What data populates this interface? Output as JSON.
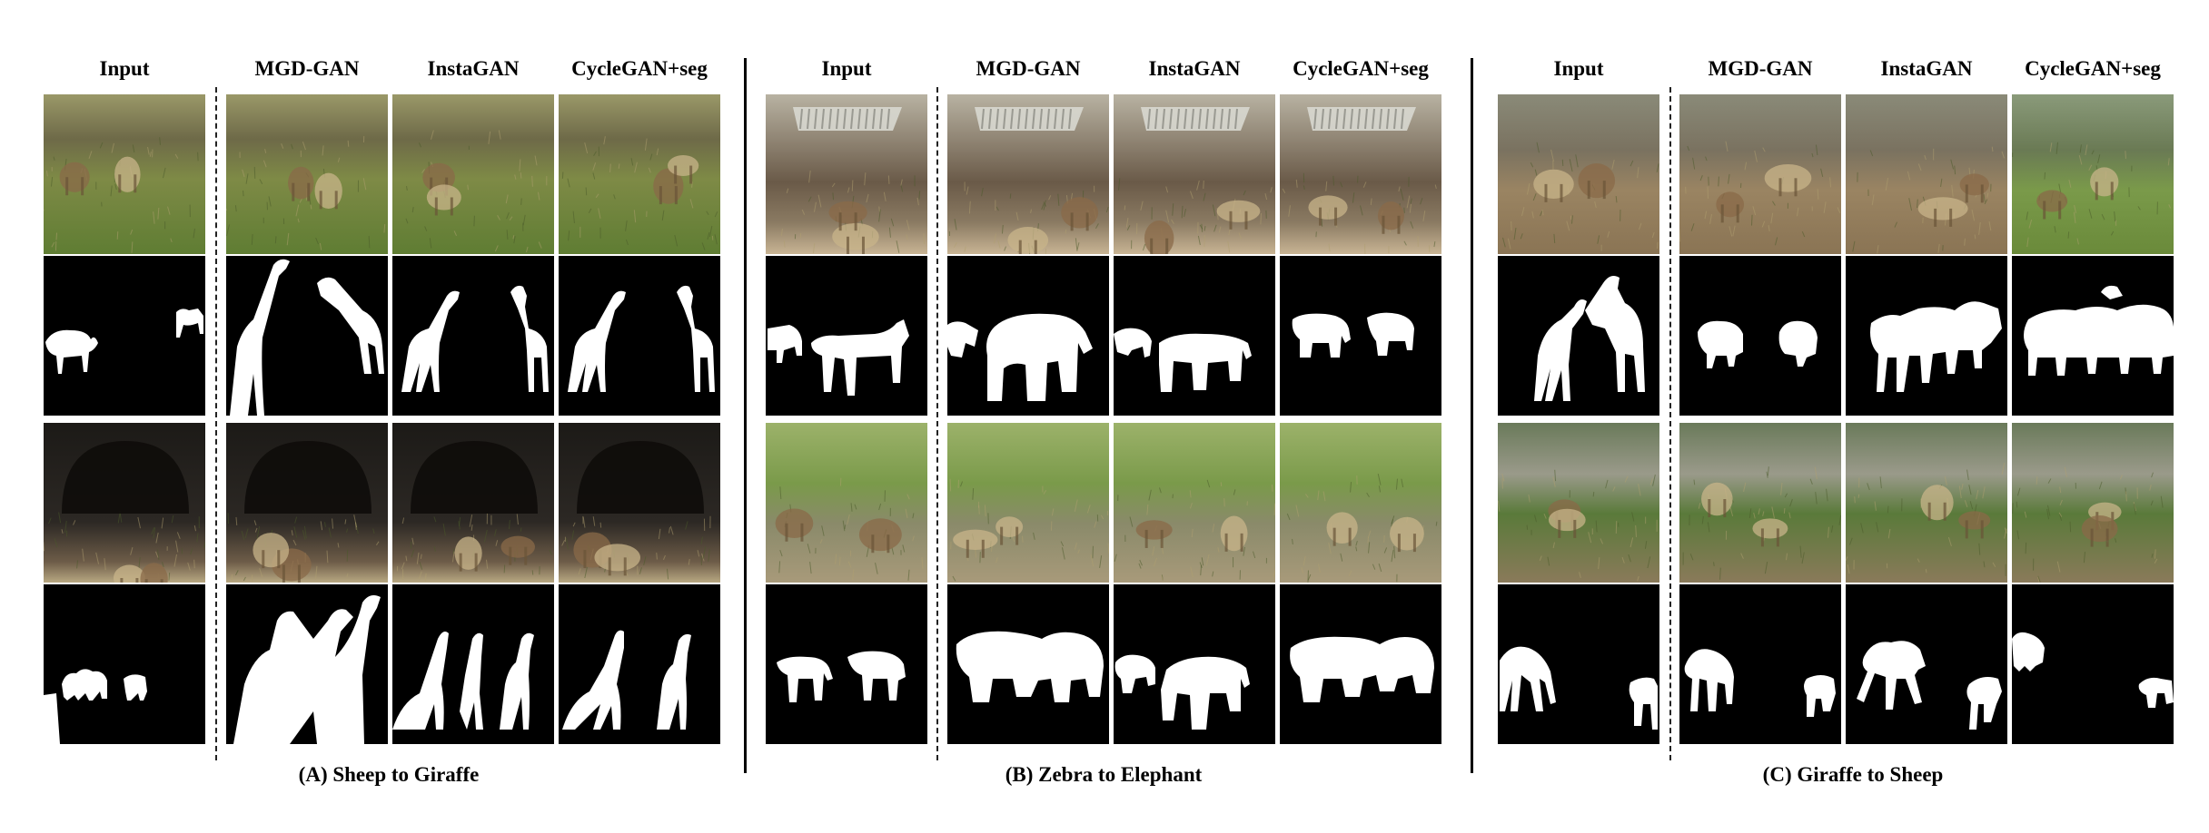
{
  "panels": [
    {
      "caption": "(A) Sheep to Giraffe",
      "columns": [
        "Input",
        "MGD-GAN",
        "InstaGAN",
        "CycleGAN+seg"
      ],
      "photo_style": "grass"
    },
    {
      "caption": "(B) Zebra to Elephant",
      "columns": [
        "Input",
        "MGD-GAN",
        "InstaGAN",
        "CycleGAN+seg"
      ],
      "photo_style": "dirt"
    },
    {
      "caption": "(C) Giraffe to Sheep",
      "columns": [
        "Input",
        "MGD-GAN",
        "InstaGAN",
        "CycleGAN+seg"
      ],
      "photo_style": "field"
    }
  ],
  "colors": {
    "mask_background": "#000000",
    "mask_foreground": "#ffffff",
    "divider": "#000000"
  }
}
